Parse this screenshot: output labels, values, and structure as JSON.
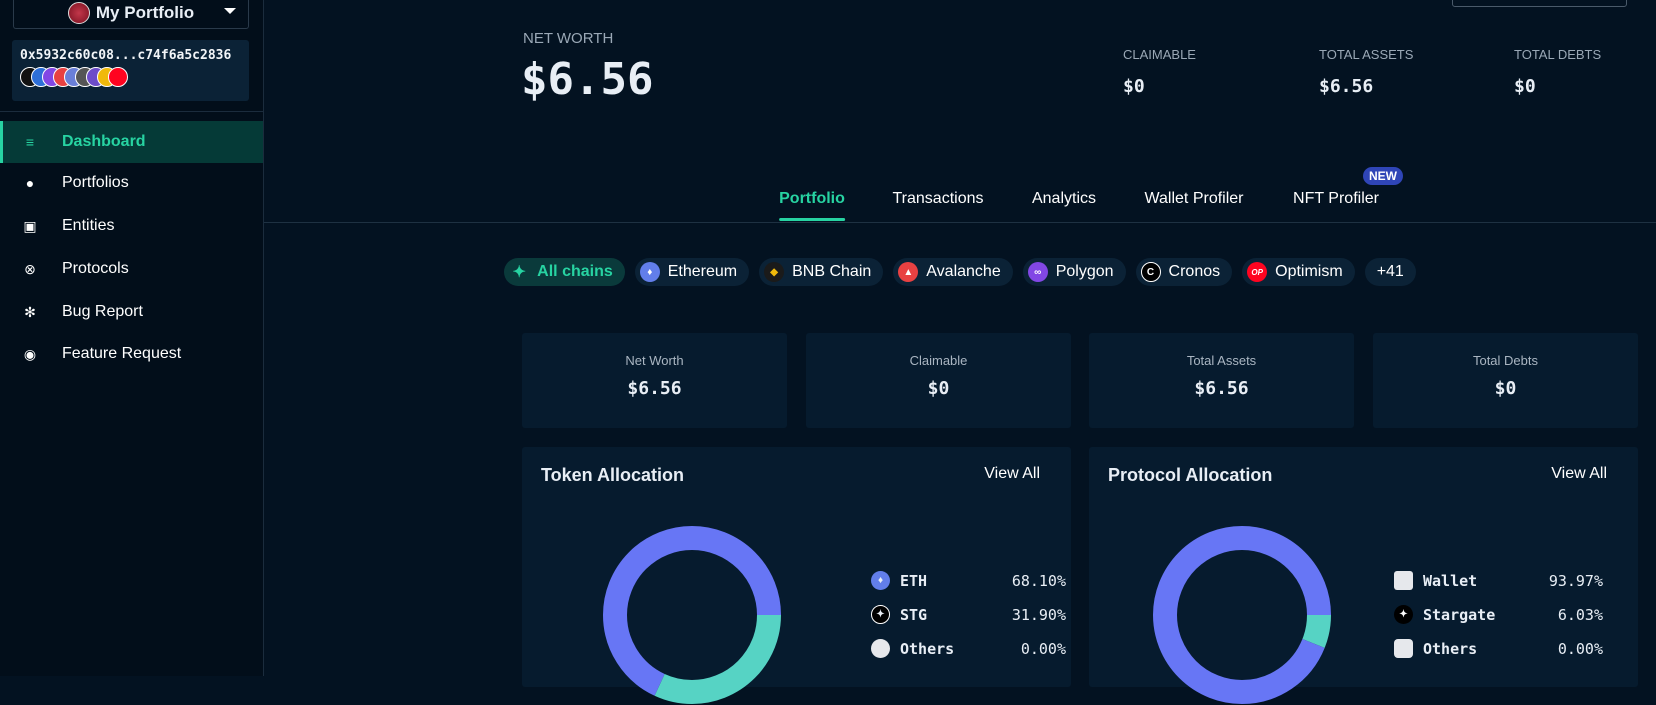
{
  "sidebar": {
    "portfolio_name": "My Portfolio",
    "address": "0x5932c60c08...c74f6a5c2836",
    "chain_icons": [
      "#111",
      "#2e6fd8",
      "#8247e5",
      "#e84142",
      "#6a7fd8",
      "#555",
      "#6d4cc9",
      "#f0b90b",
      "#ff0420"
    ],
    "items": [
      {
        "label": "Dashboard",
        "icon": "chart-icon",
        "active": true
      },
      {
        "label": "Portfolios",
        "icon": "user-icon"
      },
      {
        "label": "Entities",
        "icon": "bank-icon"
      },
      {
        "label": "Protocols",
        "icon": "lifebuoy-icon"
      },
      {
        "label": "Bug Report",
        "icon": "bug-icon"
      },
      {
        "label": "Feature Request",
        "icon": "lightbulb-icon"
      }
    ]
  },
  "header": {
    "net_worth_label": "NET WORTH",
    "net_worth": "$6.56",
    "claimable_label": "CLAIMABLE",
    "claimable": "$0",
    "total_assets_label": "TOTAL ASSETS",
    "total_assets": "$6.56",
    "total_debts_label": "TOTAL DEBTS",
    "total_debts": "$0"
  },
  "tabs": [
    {
      "label": "Portfolio",
      "active": true
    },
    {
      "label": "Transactions"
    },
    {
      "label": "Analytics"
    },
    {
      "label": "Wallet Profiler"
    },
    {
      "label": "NFT Profiler",
      "badge": "NEW"
    }
  ],
  "chains": [
    {
      "label": "All chains",
      "active": true
    },
    {
      "label": "Ethereum",
      "color": "#627eea"
    },
    {
      "label": "BNB Chain",
      "color": "#1a1a1a"
    },
    {
      "label": "Avalanche",
      "color": "#e84142"
    },
    {
      "label": "Polygon",
      "color": "#8247e5"
    },
    {
      "label": "Cronos",
      "color": "#000000"
    },
    {
      "label": "Optimism",
      "color": "#ff0420",
      "glyph": "OP"
    },
    {
      "label": "+41"
    }
  ],
  "stats": [
    {
      "label": "Net Worth",
      "value": "$6.56"
    },
    {
      "label": "Claimable",
      "value": "$0"
    },
    {
      "label": "Total Assets",
      "value": "$6.56"
    },
    {
      "label": "Total Debts",
      "value": "$0"
    }
  ],
  "colors": {
    "accent": "#27d3a2",
    "primary_slice": "#6776f5",
    "secondary_slice": "#56d3c4"
  },
  "token_allocation": {
    "title": "Token Allocation",
    "view_all": "View All",
    "items": [
      {
        "label": "ETH",
        "pct": "68.10%",
        "value": 68.1
      },
      {
        "label": "STG",
        "pct": "31.90%",
        "value": 31.9
      },
      {
        "label": "Others",
        "pct": "0.00%",
        "value": 0
      }
    ]
  },
  "protocol_allocation": {
    "title": "Protocol Allocation",
    "view_all": "View All",
    "items": [
      {
        "label": "Wallet",
        "pct": "93.97%",
        "value": 93.97
      },
      {
        "label": "Stargate",
        "pct": "6.03%",
        "value": 6.03
      },
      {
        "label": "Others",
        "pct": "0.00%",
        "value": 0
      }
    ]
  }
}
